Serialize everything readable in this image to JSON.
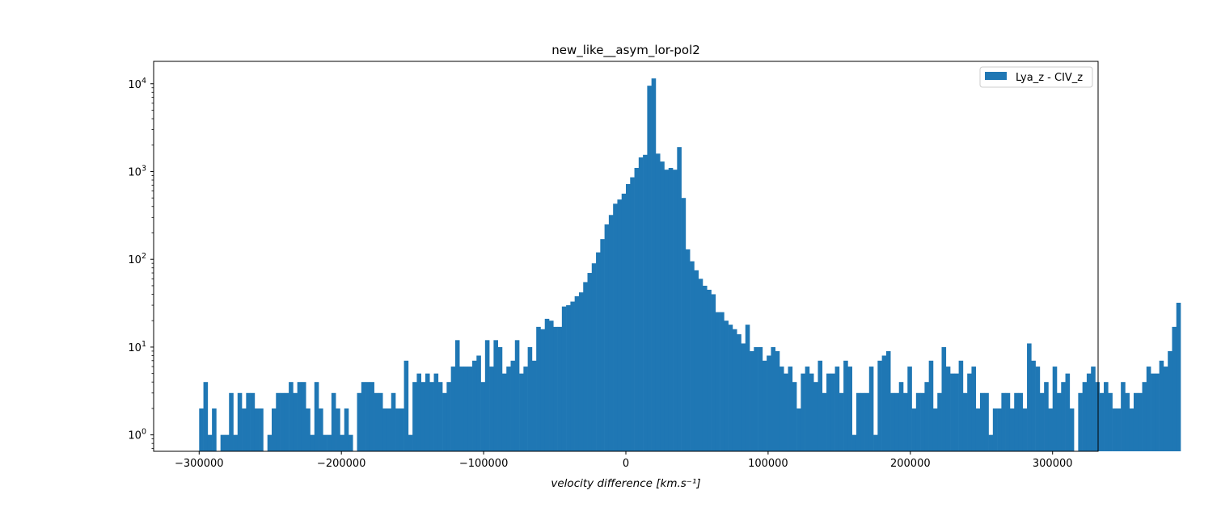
{
  "chart_data": {
    "type": "bar",
    "title": "new_like__asym_lor-pol2",
    "xlabel": "velocity difference [km.s⁻¹]",
    "ylabel": "",
    "yscale": "log",
    "xlim": [
      -332000,
      332000
    ],
    "ylim": [
      0.65,
      18000
    ],
    "grid": false,
    "legend_position": "top-right",
    "bar_color": "#1f77b4",
    "x_ticks": [
      {
        "value": -300000,
        "label": "−300000"
      },
      {
        "value": -200000,
        "label": "−200000"
      },
      {
        "value": -100000,
        "label": "−100000"
      },
      {
        "value": 0,
        "label": "0"
      },
      {
        "value": 100000,
        "label": "100000"
      },
      {
        "value": 200000,
        "label": "200000"
      },
      {
        "value": 300000,
        "label": "300000"
      }
    ],
    "y_ticks": [
      {
        "value": 1,
        "base": "10",
        "exp": "0"
      },
      {
        "value": 10,
        "base": "10",
        "exp": "1"
      },
      {
        "value": 100,
        "base": "10",
        "exp": "2"
      },
      {
        "value": 1000,
        "base": "10",
        "exp": "3"
      },
      {
        "value": 10000,
        "base": "10",
        "exp": "4"
      }
    ],
    "bin_start": -300000,
    "bin_width": 3000,
    "series": [
      {
        "name": "Lya_z - CIV_z",
        "values": [
          2,
          4,
          1,
          2,
          0,
          1,
          1,
          3,
          1,
          3,
          2,
          3,
          3,
          2,
          2,
          0,
          1,
          2,
          3,
          3,
          3,
          4,
          3,
          4,
          4,
          2,
          1,
          4,
          2,
          1,
          1,
          3,
          2,
          1,
          2,
          1,
          0,
          3,
          4,
          4,
          4,
          3,
          3,
          2,
          2,
          3,
          2,
          2,
          7,
          1,
          4,
          5,
          4,
          5,
          4,
          5,
          4,
          3,
          4,
          6,
          12,
          6,
          6,
          6,
          7,
          8,
          4,
          12,
          6,
          12,
          10,
          5,
          6,
          7,
          12,
          5,
          6,
          10,
          7,
          17,
          16,
          21,
          20,
          17,
          17,
          29,
          30,
          33,
          38,
          42,
          55,
          70,
          90,
          120,
          170,
          250,
          320,
          430,
          480,
          560,
          720,
          860,
          1100,
          1450,
          1550,
          9500,
          11500,
          1600,
          1300,
          1050,
          1100,
          1050,
          1900,
          500,
          130,
          95,
          75,
          60,
          50,
          45,
          40,
          25,
          25,
          20,
          18,
          16,
          14,
          11,
          18,
          9,
          10,
          10,
          7,
          8,
          10,
          9,
          6,
          5,
          6,
          4,
          2,
          5,
          6,
          5,
          4,
          7,
          3,
          5,
          5,
          6,
          3,
          7,
          6,
          1,
          3,
          3,
          3,
          6,
          1,
          7,
          8,
          9,
          3,
          3,
          4,
          3,
          6,
          2,
          3,
          3,
          4,
          7,
          2,
          3,
          10,
          6,
          5,
          5,
          7,
          3,
          5,
          6,
          2,
          3,
          3,
          1,
          2,
          2,
          3,
          3,
          2,
          3,
          3,
          2,
          11,
          7,
          6,
          3,
          4,
          2,
          6,
          3,
          4,
          5,
          2,
          0,
          3,
          4,
          5,
          6,
          4,
          3,
          4,
          3,
          2,
          2,
          4,
          3,
          2,
          3,
          3,
          4,
          6,
          5,
          5,
          7,
          6,
          9,
          17,
          32
        ]
      }
    ]
  }
}
